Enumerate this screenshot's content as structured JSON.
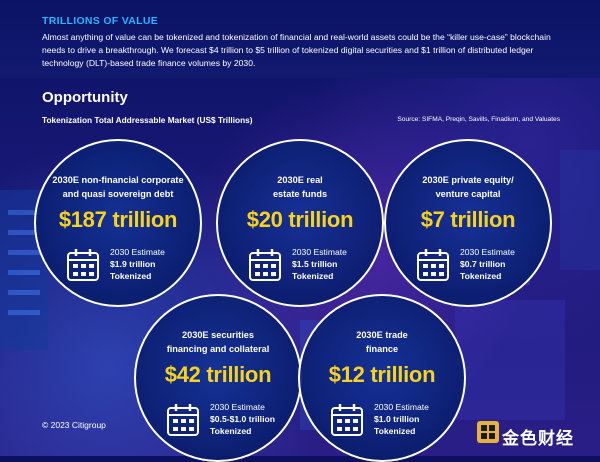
{
  "header": {
    "section_label": "TRILLIONS OF VALUE",
    "intro": "Almost anything of value can be tokenized and tokenization of financial and real-world assets could be the “killer use-case” blockchain needs to drive a breakthrough. We forecast $4 trillion to $5 trillion of tokenized digital securities and $1 trillion of distributed ledger technology (DLT)-based trade finance volumes by 2030."
  },
  "opportunity": {
    "heading": "Opportunity",
    "chart_title": "Tokenization Total Addressable Market (US$ Trillions)",
    "source": "Source: SIFMA, Preqin, Savills, Finadium, and Valuates"
  },
  "circles": [
    {
      "label_line1": "2030E non-financial corporate",
      "label_line2": "and quasi sovereign debt",
      "value": "$187 trillion",
      "estimate_label": "2030 Estimate",
      "estimate_value": "$1.9 trillion",
      "estimate_suffix": "Tokenized"
    },
    {
      "label_line1": "2030E real",
      "label_line2": "estate funds",
      "value": "$20 trillion",
      "estimate_label": "2030 Estimate",
      "estimate_value": "$1.5 trillion",
      "estimate_suffix": "Tokenized"
    },
    {
      "label_line1": "2030E private equity/",
      "label_line2": "venture capital",
      "value": "$7 trillion",
      "estimate_label": "2030 Estimate",
      "estimate_value": "$0.7 trillion",
      "estimate_suffix": "Tokenized"
    },
    {
      "label_line1": "2030E securities",
      "label_line2": "financing and collateral",
      "value": "$42 trillion",
      "estimate_label": "2030 Estimate",
      "estimate_value": "$0.5-$1.0 trillion",
      "estimate_suffix": "Tokenized"
    },
    {
      "label_line1": "2030E trade",
      "label_line2": "finance",
      "value": "$12 trillion",
      "estimate_label": "2030 Estimate",
      "estimate_value": "$1.0 trillion",
      "estimate_suffix": "Tokenized"
    }
  ],
  "footer": {
    "copyright": "© 2023 Citigroup",
    "watermark": "金色财经"
  },
  "colors": {
    "accent_blue": "#27b5ff",
    "value_yellow": "#f7d31e",
    "background": "#0b1160"
  },
  "icons": [
    "calendar-icon",
    "jinse-logo-icon"
  ]
}
